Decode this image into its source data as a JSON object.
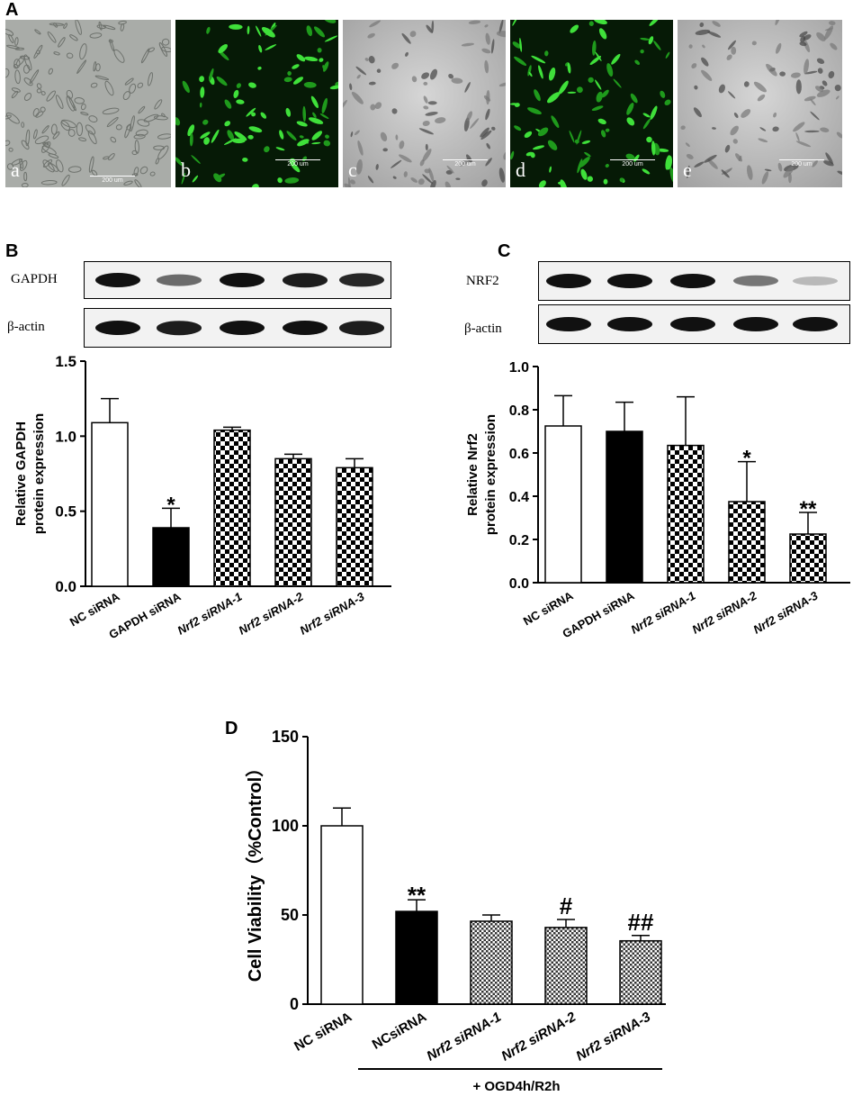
{
  "panelA": {
    "letter": "A",
    "images": [
      {
        "label": "a",
        "kind": "brightfield",
        "scale": "200 um"
      },
      {
        "label": "b",
        "kind": "fluorescence",
        "scale": "200 um"
      },
      {
        "label": "c",
        "kind": "brightfield",
        "scale": "200 um"
      },
      {
        "label": "d",
        "kind": "fluorescence",
        "scale": "200 um"
      },
      {
        "label": "e",
        "kind": "brightfield",
        "scale": "200 um"
      }
    ]
  },
  "panelB": {
    "letter": "B",
    "blot_labels": [
      "GAPDH",
      "β-actin"
    ],
    "band_intensity": [
      [
        1,
        0.6,
        1,
        0.95,
        0.9
      ],
      [
        1,
        0.95,
        1,
        1,
        0.95
      ]
    ]
  },
  "panelC": {
    "letter": "C",
    "blot_labels": [
      "NRF2",
      "β-actin"
    ],
    "band_intensity": [
      [
        1,
        1,
        1,
        0.55,
        0.25
      ],
      [
        1,
        1,
        1,
        1,
        1
      ]
    ]
  },
  "panelD": {
    "letter": "D",
    "treatment": "+ OGD4h/R2h"
  },
  "chart_data": [
    {
      "type": "bar",
      "categories": [
        "NC siRNA",
        "GAPDH siRNA",
        "Nrf2 siRNA-1",
        "Nrf2 siRNA-2",
        "Nrf2 siRNA-3"
      ],
      "values": [
        1.09,
        0.39,
        1.04,
        0.85,
        0.79
      ],
      "errors": [
        0.16,
        0.13,
        0.02,
        0.03,
        0.06
      ],
      "fills": [
        "white",
        "black",
        "check",
        "check",
        "check"
      ],
      "annotations": [
        "",
        "*",
        "",
        "",
        ""
      ],
      "ylabel": "Relative GAPDH protein expression",
      "ylabel_lines": [
        "Relative GAPDH",
        "protein expression"
      ],
      "ylim": [
        0,
        1.5
      ],
      "yticks": [
        "0.0",
        "0.5",
        "1.0",
        "1.5"
      ]
    },
    {
      "type": "bar",
      "categories": [
        "NC siRNA",
        "GAPDH siRNA",
        "Nrf2 siRNA-1",
        "Nrf2 siRNA-2",
        "Nrf2 siRNA-3"
      ],
      "values": [
        0.725,
        0.7,
        0.635,
        0.375,
        0.225
      ],
      "errors": [
        0.14,
        0.135,
        0.225,
        0.185,
        0.1
      ],
      "fills": [
        "white",
        "black",
        "check",
        "check",
        "check"
      ],
      "annotations": [
        "",
        "",
        "",
        "*",
        "**"
      ],
      "ylabel": "Relative Nrf2 protein expression",
      "ylabel_lines": [
        "Relative Nrf2",
        "protein expression"
      ],
      "ylim": [
        0,
        1.0
      ],
      "yticks": [
        "0.0",
        "0.2",
        "0.4",
        "0.6",
        "0.8",
        "1.0"
      ]
    },
    {
      "type": "bar",
      "categories": [
        "NC siRNA",
        "NCsiRNA",
        "Nrf2 siRNA-1",
        "Nrf2 siRNA-2",
        "Nrf2 siRNA-3"
      ],
      "values": [
        100,
        52,
        46.5,
        43,
        35.5
      ],
      "errors": [
        10,
        6.5,
        3.5,
        4.5,
        3
      ],
      "fills": [
        "white",
        "black",
        "fine",
        "fine",
        "fine"
      ],
      "annotations": [
        "",
        "**",
        "",
        "#",
        "##"
      ],
      "ylabel": "Cell Viability（%Control）",
      "ylabel_lines": [
        "Cell Viability（%Control）"
      ],
      "ylim": [
        0,
        150
      ],
      "yticks": [
        "0",
        "50",
        "100",
        "150"
      ]
    }
  ]
}
